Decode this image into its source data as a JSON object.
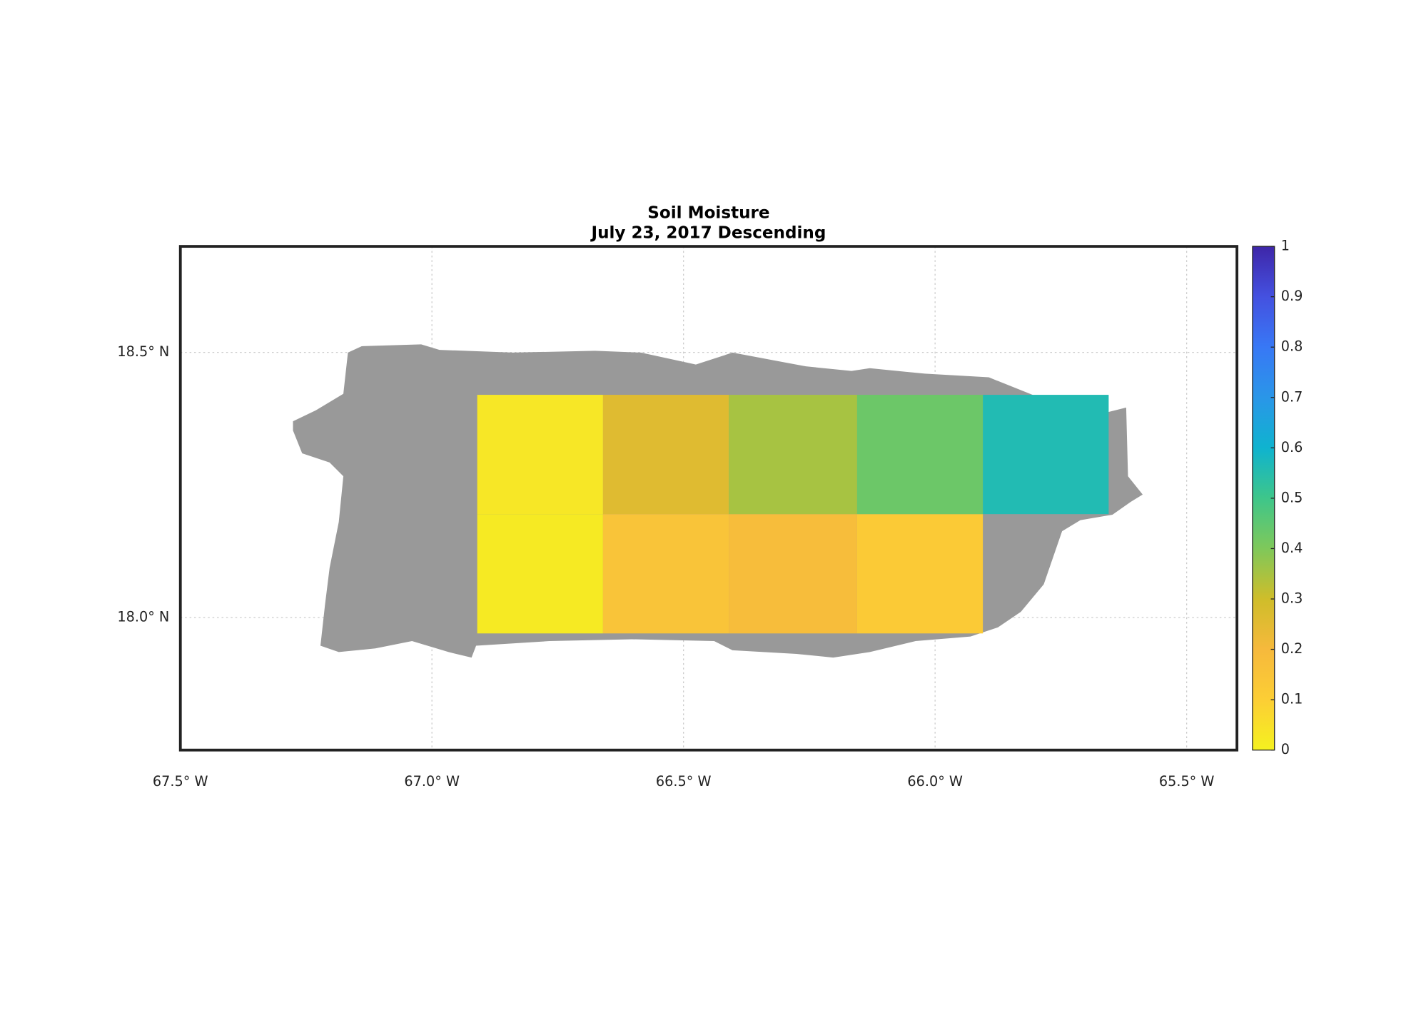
{
  "chart_data": {
    "type": "heatmap",
    "title": "Soil Moisture",
    "subtitle": "July 23, 2017 Descending",
    "x_edges": [
      -66.91,
      -66.66,
      -66.41,
      -66.155,
      -65.905,
      -65.655
    ],
    "y_edges": [
      17.97,
      18.195,
      18.42
    ],
    "values": [
      [
        0.02,
        0.15,
        0.18,
        0.12,
        null
      ],
      [
        0.03,
        0.26,
        0.35,
        0.43,
        0.56
      ]
    ],
    "xlim": [
      -67.5,
      -65.4
    ],
    "ylim": [
      17.75,
      18.7
    ],
    "xticks": [
      {
        "value": -67.5,
        "label": "67.5° W"
      },
      {
        "value": -67.0,
        "label": "67.0° W"
      },
      {
        "value": -66.5,
        "label": "66.5° W"
      },
      {
        "value": -66.0,
        "label": "66.0° W"
      },
      {
        "value": -65.5,
        "label": "65.5° W"
      }
    ],
    "yticks": [
      {
        "value": 18.0,
        "label": "18.0° N"
      },
      {
        "value": 18.5,
        "label": "18.5° N"
      }
    ],
    "grid": true,
    "clim": [
      0,
      1
    ],
    "cticks": [
      0,
      0.1,
      0.2,
      0.3,
      0.4,
      0.5,
      0.6,
      0.7,
      0.8,
      0.9,
      1
    ],
    "colormap": [
      "#f5f11f",
      "#fcce35",
      "#f6b93c",
      "#cfbd2a",
      "#7fc85a",
      "#3ec68a",
      "#0fb3cf",
      "#2a96e8",
      "#3878f5",
      "#4451e0",
      "#3e26a8"
    ],
    "land_color": "#999999"
  }
}
